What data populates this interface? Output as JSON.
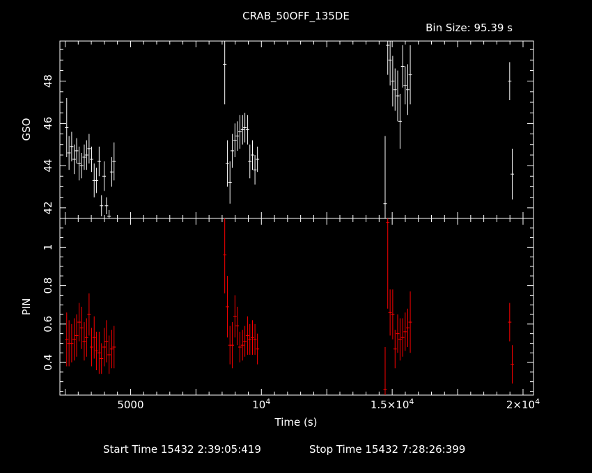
{
  "title": "CRAB_50OFF_135DE",
  "bin_size": "Bin Size: 95.39 s",
  "footer": {
    "start": "Start Time 15432  2:39:05:419",
    "stop": "Stop Time 15432  7:28:26:399"
  },
  "colors": {
    "gso": "#ffffff",
    "pin": "#ff0000",
    "axes": "#ffffff",
    "background": "#000000"
  },
  "chart_data": [
    {
      "type": "scatter",
      "name": "gso-panel",
      "ylabel": "GSO",
      "xlabel": "",
      "xlim": [
        2300,
        20400
      ],
      "ylim": [
        41.5,
        49.9
      ],
      "yticks": [
        {
          "v": 42,
          "label": "42"
        },
        {
          "v": 44,
          "label": "44"
        },
        {
          "v": 46,
          "label": "46"
        },
        {
          "v": 48,
          "label": "48"
        }
      ],
      "points": [
        [
          2560,
          45.8,
          1.4
        ],
        [
          2650,
          44.6,
          0.8
        ],
        [
          2750,
          44.9,
          0.7
        ],
        [
          2845,
          44.3,
          0.7
        ],
        [
          2940,
          44.7,
          0.6
        ],
        [
          3035,
          44.1,
          0.8
        ],
        [
          3130,
          44.0,
          0.6
        ],
        [
          3230,
          44.4,
          0.6
        ],
        [
          3320,
          44.5,
          0.7
        ],
        [
          3415,
          44.8,
          0.7
        ],
        [
          3510,
          44.3,
          0.6
        ],
        [
          3610,
          43.3,
          0.8
        ],
        [
          3700,
          43.3,
          0.6
        ],
        [
          3800,
          44.2,
          0.7
        ],
        [
          3890,
          42.1,
          0.5
        ],
        [
          3990,
          43.5,
          0.7
        ],
        [
          4080,
          42.1,
          0.4
        ],
        [
          4180,
          41.6,
          0.3
        ],
        [
          4280,
          43.7,
          0.7
        ],
        [
          4370,
          44.2,
          0.9
        ],
        [
          8600,
          48.8,
          1.9
        ],
        [
          8700,
          44.1,
          1.1
        ],
        [
          8800,
          43.2,
          1.0
        ],
        [
          8890,
          44.7,
          0.8
        ],
        [
          8990,
          45.2,
          0.8
        ],
        [
          9080,
          45.4,
          0.7
        ],
        [
          9180,
          45.6,
          0.8
        ],
        [
          9280,
          45.7,
          0.7
        ],
        [
          9370,
          45.8,
          0.7
        ],
        [
          9470,
          45.7,
          0.7
        ],
        [
          9560,
          44.2,
          0.8
        ],
        [
          9660,
          44.5,
          0.7
        ],
        [
          9755,
          43.8,
          0.7
        ],
        [
          9850,
          44.3,
          0.6
        ],
        [
          14730,
          42.2,
          3.2
        ],
        [
          14830,
          49.7,
          1.4
        ],
        [
          14920,
          49.0,
          1.2
        ],
        [
          15020,
          48.0,
          1.2
        ],
        [
          15110,
          47.6,
          1.0
        ],
        [
          15210,
          47.3,
          1.2
        ],
        [
          15300,
          46.1,
          1.3
        ],
        [
          15400,
          48.7,
          1.0
        ],
        [
          15495,
          47.8,
          0.9
        ],
        [
          15595,
          47.6,
          1.2
        ],
        [
          15690,
          48.3,
          1.4
        ],
        [
          19490,
          48.0,
          0.9
        ],
        [
          19590,
          43.6,
          1.2
        ]
      ]
    },
    {
      "type": "scatter",
      "name": "pin-panel",
      "ylabel": "PIN",
      "xlabel": "Time (s)",
      "xlim": [
        2300,
        20400
      ],
      "ylim": [
        0.23,
        1.15
      ],
      "yticks": [
        {
          "v": 0.4,
          "label": "0.4"
        },
        {
          "v": 0.6,
          "label": "0.6"
        },
        {
          "v": 0.8,
          "label": "0.8"
        },
        {
          "v": 1.0,
          "label": "1"
        }
      ],
      "xticks": [
        {
          "v": 5000,
          "label": "5000"
        },
        {
          "v": 10000,
          "label": "10^4"
        },
        {
          "v": 15000,
          "label": "1.5×10^4"
        },
        {
          "v": 20000,
          "label": "2×10^4"
        }
      ],
      "points": [
        [
          2560,
          0.52,
          0.14
        ],
        [
          2650,
          0.5,
          0.12
        ],
        [
          2750,
          0.5,
          0.1
        ],
        [
          2845,
          0.52,
          0.11
        ],
        [
          2940,
          0.54,
          0.11
        ],
        [
          3035,
          0.61,
          0.1
        ],
        [
          3130,
          0.58,
          0.11
        ],
        [
          3230,
          0.51,
          0.1
        ],
        [
          3320,
          0.53,
          0.1
        ],
        [
          3415,
          0.65,
          0.11
        ],
        [
          3510,
          0.48,
          0.1
        ],
        [
          3610,
          0.53,
          0.11
        ],
        [
          3700,
          0.46,
          0.1
        ],
        [
          3800,
          0.45,
          0.11
        ],
        [
          3890,
          0.42,
          0.08
        ],
        [
          3990,
          0.48,
          0.1
        ],
        [
          4080,
          0.51,
          0.11
        ],
        [
          4180,
          0.44,
          0.1
        ],
        [
          4280,
          0.47,
          0.1
        ],
        [
          4370,
          0.48,
          0.11
        ],
        [
          8600,
          0.96,
          0.2
        ],
        [
          8700,
          0.69,
          0.16
        ],
        [
          8800,
          0.49,
          0.1
        ],
        [
          8890,
          0.49,
          0.12
        ],
        [
          8990,
          0.64,
          0.11
        ],
        [
          9080,
          0.59,
          0.1
        ],
        [
          9180,
          0.48,
          0.08
        ],
        [
          9280,
          0.49,
          0.08
        ],
        [
          9370,
          0.51,
          0.08
        ],
        [
          9470,
          0.54,
          0.1
        ],
        [
          9560,
          0.52,
          0.08
        ],
        [
          9660,
          0.53,
          0.09
        ],
        [
          9755,
          0.52,
          0.08
        ],
        [
          9850,
          0.47,
          0.08
        ],
        [
          14730,
          0.26,
          0.22
        ],
        [
          14830,
          1.13,
          0.45
        ],
        [
          14920,
          0.66,
          0.12
        ],
        [
          15020,
          0.65,
          0.13
        ],
        [
          15110,
          0.47,
          0.1
        ],
        [
          15210,
          0.55,
          0.1
        ],
        [
          15300,
          0.52,
          0.11
        ],
        [
          15400,
          0.53,
          0.1
        ],
        [
          15495,
          0.56,
          0.1
        ],
        [
          15595,
          0.58,
          0.1
        ],
        [
          15690,
          0.61,
          0.16
        ],
        [
          19490,
          0.61,
          0.1
        ],
        [
          19590,
          0.39,
          0.1
        ]
      ]
    }
  ]
}
